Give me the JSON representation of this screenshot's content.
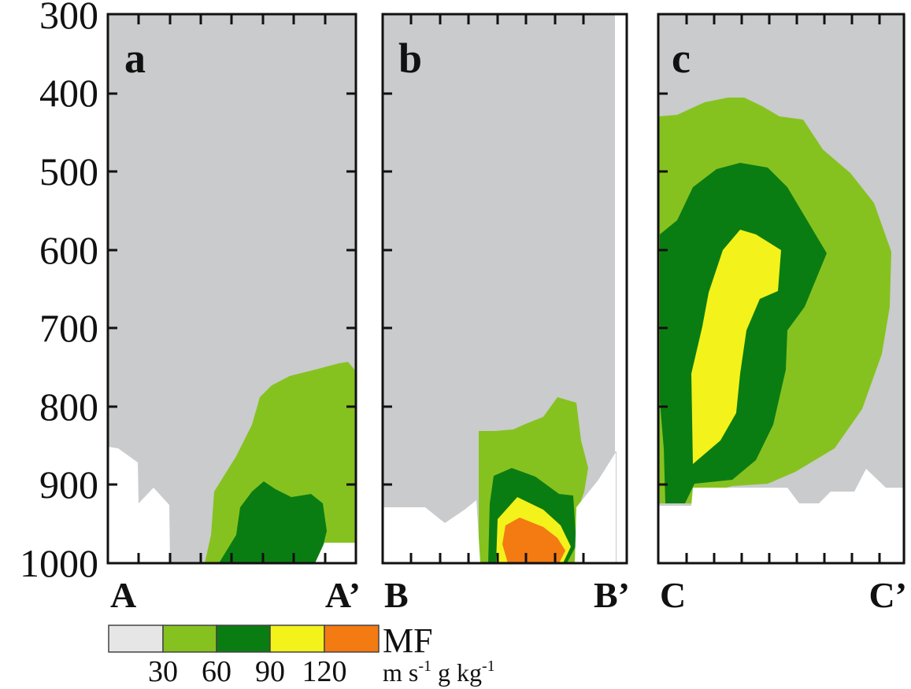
{
  "chart_data": {
    "type": "contour",
    "yticks": [
      "300",
      "400",
      "500",
      "600",
      "700",
      "800",
      "900",
      "1000"
    ],
    "y_axis_values": [
      300,
      400,
      500,
      600,
      700,
      800,
      900,
      1000
    ],
    "y_reversed": true,
    "ylim": [
      1000,
      300
    ],
    "panels": [
      {
        "letter": "a",
        "start_label": "A",
        "end_label": "A’"
      },
      {
        "letter": "b",
        "start_label": "B",
        "end_label": "B’"
      },
      {
        "letter": "c",
        "start_label": "C",
        "end_label": "C’"
      }
    ],
    "legend": {
      "title": "MF",
      "unit_parts": [
        "m s",
        "-1",
        " g kg",
        "-1"
      ],
      "bounds": [
        "30",
        "60",
        "90",
        "120"
      ],
      "levels": [
        {
          "range": "<30",
          "color": "#c9cbcc"
        },
        {
          "range": "30-60",
          "color": "#86c21f"
        },
        {
          "range": "60-90",
          "color": "#0a7d12"
        },
        {
          "range": "90-120",
          "color": "#f3f21a"
        },
        {
          "range": ">120",
          "color": "#f47a12"
        }
      ]
    },
    "colors": {
      "background": "#c9cbcc",
      "terrain": "#ffffff",
      "legend_first_box": "#e6e6e6"
    }
  }
}
